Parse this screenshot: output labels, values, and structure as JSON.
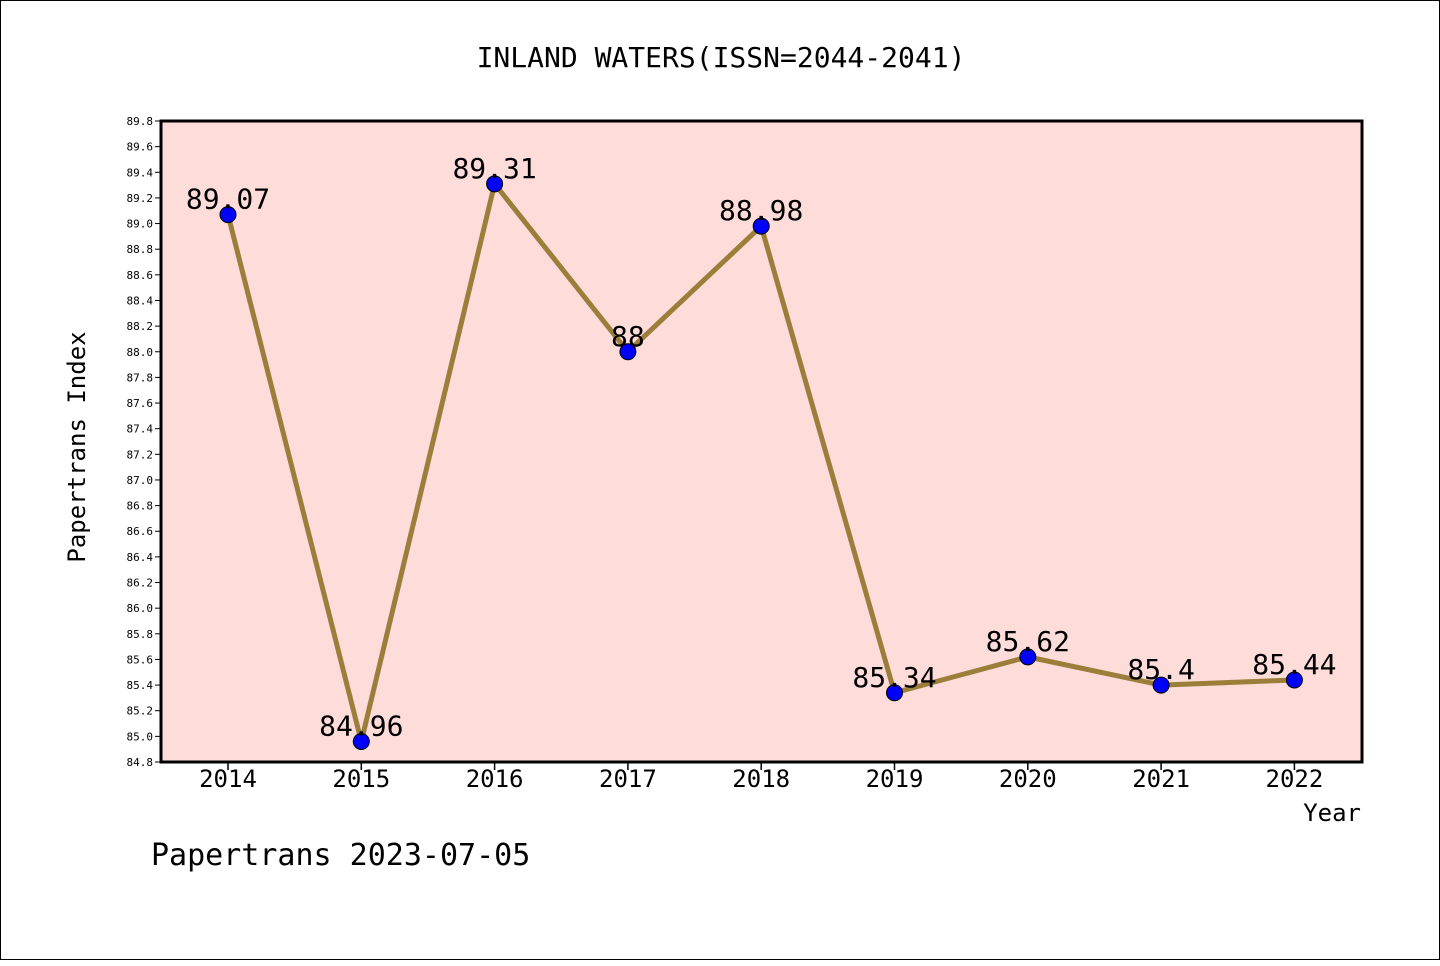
{
  "chart_data": {
    "type": "line",
    "title": "INLAND WATERS(ISSN=2044-2041)",
    "xlabel": "Year",
    "ylabel": "Papertrans Index",
    "categories": [
      "2014",
      "2015",
      "2016",
      "2017",
      "2018",
      "2019",
      "2020",
      "2021",
      "2022"
    ],
    "values": [
      89.07,
      84.96,
      89.31,
      88.0,
      88.98,
      85.34,
      85.62,
      85.4,
      85.44
    ],
    "data_labels": [
      "89.07",
      "84.96",
      "89.31",
      "88",
      "88.98",
      "85.34",
      "85.62",
      "85.4",
      "85.44"
    ],
    "ylim": [
      84.8,
      89.8
    ],
    "y_ticks": [
      "84.8",
      "85.0",
      "85.2",
      "85.4",
      "85.6",
      "85.8",
      "86.0",
      "86.2",
      "86.4",
      "86.6",
      "86.8",
      "87.0",
      "87.2",
      "87.4",
      "87.6",
      "87.8",
      "88.0",
      "88.2",
      "88.4",
      "88.6",
      "88.8",
      "89.0",
      "89.2",
      "89.4",
      "89.6",
      "89.8"
    ],
    "grid": false,
    "colors": {
      "plot_background": "#fddcda",
      "line": "#9b7e3a",
      "marker": "#0000ff"
    }
  },
  "footer": "Papertrans 2023-07-05"
}
